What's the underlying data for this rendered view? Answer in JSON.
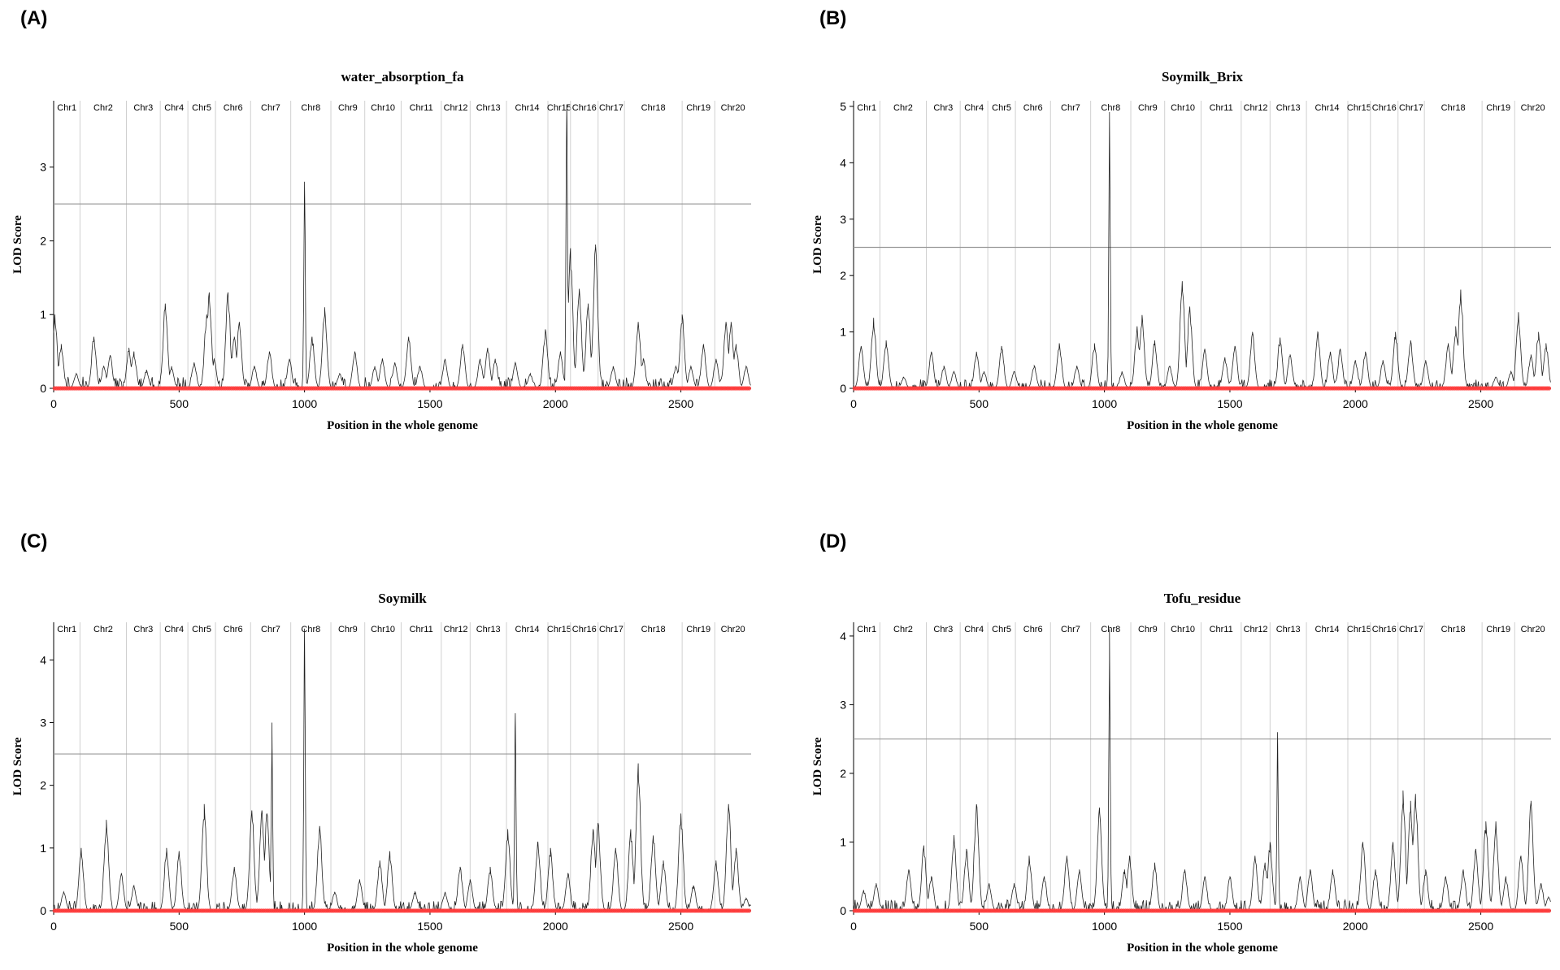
{
  "chart_data": [
    {
      "panel": "(A)",
      "type": "line",
      "title": "water_absorption_fa",
      "xlabel": "Position in the whole genome",
      "ylabel": "LOD Score",
      "xlim": [
        0,
        2780
      ],
      "ylim": [
        0,
        3.9
      ],
      "xticks": [
        0,
        500,
        1000,
        1500,
        2000,
        2500
      ],
      "yticks": [
        0,
        1,
        2,
        3
      ],
      "threshold": 2.5,
      "grid": "vertical chromosome boundaries",
      "chromosomes": [
        {
          "name": "Chr1",
          "start": 0,
          "end": 105
        },
        {
          "name": "Chr2",
          "start": 105,
          "end": 290
        },
        {
          "name": "Chr3",
          "start": 290,
          "end": 425
        },
        {
          "name": "Chr4",
          "start": 425,
          "end": 535
        },
        {
          "name": "Chr5",
          "start": 535,
          "end": 645
        },
        {
          "name": "Chr6",
          "start": 645,
          "end": 785
        },
        {
          "name": "Chr7",
          "start": 785,
          "end": 945
        },
        {
          "name": "Chr8",
          "start": 945,
          "end": 1105
        },
        {
          "name": "Chr9",
          "start": 1105,
          "end": 1240
        },
        {
          "name": "Chr10",
          "start": 1240,
          "end": 1385
        },
        {
          "name": "Chr11",
          "start": 1385,
          "end": 1545
        },
        {
          "name": "Chr12",
          "start": 1545,
          "end": 1660
        },
        {
          "name": "Chr13",
          "start": 1660,
          "end": 1805
        },
        {
          "name": "Chr14",
          "start": 1805,
          "end": 1970
        },
        {
          "name": "Chr15",
          "start": 1970,
          "end": 2060
        },
        {
          "name": "Chr16",
          "start": 2060,
          "end": 2170
        },
        {
          "name": "Chr17",
          "start": 2170,
          "end": 2275
        },
        {
          "name": "Chr18",
          "start": 2275,
          "end": 2505
        },
        {
          "name": "Chr19",
          "start": 2505,
          "end": 2635
        },
        {
          "name": "Chr20",
          "start": 2635,
          "end": 2780
        }
      ],
      "peaks": [
        [
          5,
          1.0
        ],
        [
          30,
          0.6
        ],
        [
          90,
          0.2
        ],
        [
          160,
          0.7
        ],
        [
          200,
          0.3
        ],
        [
          225,
          0.45
        ],
        [
          300,
          0.55
        ],
        [
          320,
          0.5
        ],
        [
          370,
          0.25
        ],
        [
          445,
          1.15
        ],
        [
          470,
          0.3
        ],
        [
          560,
          0.35
        ],
        [
          610,
          1.0
        ],
        [
          620,
          1.3
        ],
        [
          640,
          0.4
        ],
        [
          695,
          1.3
        ],
        [
          720,
          0.7
        ],
        [
          740,
          0.9
        ],
        [
          800,
          0.3
        ],
        [
          860,
          0.5
        ],
        [
          940,
          0.4
        ],
        [
          1000,
          2.8
        ],
        [
          1030,
          0.7
        ],
        [
          1080,
          1.1
        ],
        [
          1140,
          0.2
        ],
        [
          1200,
          0.5
        ],
        [
          1280,
          0.3
        ],
        [
          1310,
          0.4
        ],
        [
          1360,
          0.35
        ],
        [
          1415,
          0.7
        ],
        [
          1460,
          0.3
        ],
        [
          1560,
          0.4
        ],
        [
          1630,
          0.6
        ],
        [
          1700,
          0.4
        ],
        [
          1730,
          0.55
        ],
        [
          1760,
          0.4
        ],
        [
          1840,
          0.35
        ],
        [
          1900,
          0.2
        ],
        [
          1960,
          0.8
        ],
        [
          2020,
          0.5
        ],
        [
          2045,
          3.85
        ],
        [
          2060,
          1.9
        ],
        [
          2095,
          1.35
        ],
        [
          2130,
          1.15
        ],
        [
          2160,
          1.95
        ],
        [
          2230,
          0.3
        ],
        [
          2330,
          0.9
        ],
        [
          2350,
          0.4
        ],
        [
          2480,
          0.3
        ],
        [
          2505,
          1.0
        ],
        [
          2540,
          0.3
        ],
        [
          2590,
          0.6
        ],
        [
          2640,
          0.4
        ],
        [
          2680,
          0.9
        ],
        [
          2700,
          0.9
        ],
        [
          2720,
          0.6
        ],
        [
          2760,
          0.3
        ]
      ],
      "color_line": "#222222",
      "color_markers": "#ff3b3b",
      "color_threshold": "#999999"
    },
    {
      "panel": "(B)",
      "type": "line",
      "title": "Soymilk_Brix",
      "xlabel": "Position in the whole genome",
      "ylabel": "LOD Score",
      "xlim": [
        0,
        2780
      ],
      "ylim": [
        0,
        5.1
      ],
      "xticks": [
        0,
        500,
        1000,
        1500,
        2000,
        2500
      ],
      "yticks": [
        0,
        1,
        2,
        3,
        4,
        5
      ],
      "threshold": 2.5,
      "grid": "vertical chromosome boundaries",
      "chromosomes": [
        {
          "name": "Chr1",
          "start": 0,
          "end": 105
        },
        {
          "name": "Chr2",
          "start": 105,
          "end": 290
        },
        {
          "name": "Chr3",
          "start": 290,
          "end": 425
        },
        {
          "name": "Chr4",
          "start": 425,
          "end": 535
        },
        {
          "name": "Chr5",
          "start": 535,
          "end": 645
        },
        {
          "name": "Chr6",
          "start": 645,
          "end": 785
        },
        {
          "name": "Chr7",
          "start": 785,
          "end": 945
        },
        {
          "name": "Chr8",
          "start": 945,
          "end": 1105
        },
        {
          "name": "Chr9",
          "start": 1105,
          "end": 1240
        },
        {
          "name": "Chr10",
          "start": 1240,
          "end": 1385
        },
        {
          "name": "Chr11",
          "start": 1385,
          "end": 1545
        },
        {
          "name": "Chr12",
          "start": 1545,
          "end": 1660
        },
        {
          "name": "Chr13",
          "start": 1660,
          "end": 1805
        },
        {
          "name": "Chr14",
          "start": 1805,
          "end": 1970
        },
        {
          "name": "Chr15",
          "start": 1970,
          "end": 2060
        },
        {
          "name": "Chr16",
          "start": 2060,
          "end": 2170
        },
        {
          "name": "Chr17",
          "start": 2170,
          "end": 2275
        },
        {
          "name": "Chr18",
          "start": 2275,
          "end": 2505
        },
        {
          "name": "Chr19",
          "start": 2505,
          "end": 2635
        },
        {
          "name": "Chr20",
          "start": 2635,
          "end": 2780
        }
      ],
      "peaks": [
        [
          30,
          0.75
        ],
        [
          80,
          1.25
        ],
        [
          130,
          0.85
        ],
        [
          200,
          0.2
        ],
        [
          310,
          0.65
        ],
        [
          360,
          0.4
        ],
        [
          400,
          0.3
        ],
        [
          490,
          0.65
        ],
        [
          520,
          0.3
        ],
        [
          590,
          0.75
        ],
        [
          640,
          0.3
        ],
        [
          720,
          0.4
        ],
        [
          820,
          0.8
        ],
        [
          890,
          0.4
        ],
        [
          960,
          0.8
        ],
        [
          1020,
          4.9
        ],
        [
          1070,
          0.3
        ],
        [
          1130,
          1.1
        ],
        [
          1150,
          1.3
        ],
        [
          1200,
          0.85
        ],
        [
          1260,
          0.4
        ],
        [
          1310,
          1.9
        ],
        [
          1340,
          1.45
        ],
        [
          1400,
          0.7
        ],
        [
          1480,
          0.55
        ],
        [
          1520,
          0.75
        ],
        [
          1590,
          1.0
        ],
        [
          1700,
          0.9
        ],
        [
          1740,
          0.6
        ],
        [
          1850,
          1.0
        ],
        [
          1900,
          0.65
        ],
        [
          1940,
          0.7
        ],
        [
          2000,
          0.5
        ],
        [
          2040,
          0.65
        ],
        [
          2110,
          0.5
        ],
        [
          2160,
          1.0
        ],
        [
          2220,
          0.85
        ],
        [
          2280,
          0.5
        ],
        [
          2370,
          0.8
        ],
        [
          2400,
          1.1
        ],
        [
          2420,
          1.75
        ],
        [
          2560,
          0.2
        ],
        [
          2620,
          0.3
        ],
        [
          2650,
          1.35
        ],
        [
          2700,
          0.6
        ],
        [
          2730,
          1.0
        ],
        [
          2760,
          0.8
        ]
      ],
      "color_line": "#222222",
      "color_markers": "#ff3b3b",
      "color_threshold": "#999999"
    },
    {
      "panel": "(C)",
      "type": "line",
      "title": "Soymilk",
      "xlabel": "Position in the whole genome",
      "ylabel": "LOD Score",
      "xlim": [
        0,
        2780
      ],
      "ylim": [
        0,
        4.6
      ],
      "xticks": [
        0,
        500,
        1000,
        1500,
        2000,
        2500
      ],
      "yticks": [
        0,
        1,
        2,
        3,
        4
      ],
      "threshold": 2.5,
      "grid": "vertical chromosome boundaries",
      "chromosomes": [
        {
          "name": "Chr1",
          "start": 0,
          "end": 105
        },
        {
          "name": "Chr2",
          "start": 105,
          "end": 290
        },
        {
          "name": "Chr3",
          "start": 290,
          "end": 425
        },
        {
          "name": "Chr4",
          "start": 425,
          "end": 535
        },
        {
          "name": "Chr5",
          "start": 535,
          "end": 645
        },
        {
          "name": "Chr6",
          "start": 645,
          "end": 785
        },
        {
          "name": "Chr7",
          "start": 785,
          "end": 945
        },
        {
          "name": "Chr8",
          "start": 945,
          "end": 1105
        },
        {
          "name": "Chr9",
          "start": 1105,
          "end": 1240
        },
        {
          "name": "Chr10",
          "start": 1240,
          "end": 1385
        },
        {
          "name": "Chr11",
          "start": 1385,
          "end": 1545
        },
        {
          "name": "Chr12",
          "start": 1545,
          "end": 1660
        },
        {
          "name": "Chr13",
          "start": 1660,
          "end": 1805
        },
        {
          "name": "Chr14",
          "start": 1805,
          "end": 1970
        },
        {
          "name": "Chr15",
          "start": 1970,
          "end": 2060
        },
        {
          "name": "Chr16",
          "start": 2060,
          "end": 2170
        },
        {
          "name": "Chr17",
          "start": 2170,
          "end": 2275
        },
        {
          "name": "Chr18",
          "start": 2275,
          "end": 2505
        },
        {
          "name": "Chr19",
          "start": 2505,
          "end": 2635
        },
        {
          "name": "Chr20",
          "start": 2635,
          "end": 2780
        }
      ],
      "peaks": [
        [
          40,
          0.3
        ],
        [
          110,
          1.0
        ],
        [
          210,
          1.45
        ],
        [
          270,
          0.6
        ],
        [
          320,
          0.4
        ],
        [
          450,
          1.0
        ],
        [
          500,
          0.95
        ],
        [
          600,
          1.7
        ],
        [
          720,
          0.7
        ],
        [
          790,
          1.6
        ],
        [
          830,
          1.6
        ],
        [
          850,
          1.55
        ],
        [
          870,
          3.0
        ],
        [
          1000,
          4.5
        ],
        [
          1060,
          1.35
        ],
        [
          1120,
          0.3
        ],
        [
          1220,
          0.5
        ],
        [
          1300,
          0.8
        ],
        [
          1340,
          0.95
        ],
        [
          1440,
          0.3
        ],
        [
          1560,
          0.3
        ],
        [
          1620,
          0.7
        ],
        [
          1660,
          0.5
        ],
        [
          1740,
          0.7
        ],
        [
          1810,
          1.3
        ],
        [
          1840,
          3.15
        ],
        [
          1930,
          1.1
        ],
        [
          1980,
          1.0
        ],
        [
          2050,
          0.6
        ],
        [
          2150,
          1.3
        ],
        [
          2170,
          1.4
        ],
        [
          2240,
          1.0
        ],
        [
          2300,
          1.3
        ],
        [
          2330,
          2.35
        ],
        [
          2390,
          1.2
        ],
        [
          2430,
          0.8
        ],
        [
          2500,
          1.55
        ],
        [
          2550,
          0.4
        ],
        [
          2640,
          0.8
        ],
        [
          2690,
          1.7
        ],
        [
          2720,
          1.0
        ],
        [
          2760,
          0.2
        ]
      ],
      "color_line": "#222222",
      "color_markers": "#ff3b3b",
      "color_threshold": "#999999"
    },
    {
      "panel": "(D)",
      "type": "line",
      "title": "Tofu_residue",
      "xlabel": "Position in the whole genome",
      "ylabel": "LOD Score",
      "xlim": [
        0,
        2780
      ],
      "ylim": [
        0,
        4.2
      ],
      "xticks": [
        0,
        500,
        1000,
        1500,
        2000,
        2500
      ],
      "yticks": [
        0,
        1,
        2,
        3,
        4
      ],
      "threshold": 2.5,
      "grid": "vertical chromosome boundaries",
      "chromosomes": [
        {
          "name": "Chr1",
          "start": 0,
          "end": 105
        },
        {
          "name": "Chr2",
          "start": 105,
          "end": 290
        },
        {
          "name": "Chr3",
          "start": 290,
          "end": 425
        },
        {
          "name": "Chr4",
          "start": 425,
          "end": 535
        },
        {
          "name": "Chr5",
          "start": 535,
          "end": 645
        },
        {
          "name": "Chr6",
          "start": 645,
          "end": 785
        },
        {
          "name": "Chr7",
          "start": 785,
          "end": 945
        },
        {
          "name": "Chr8",
          "start": 945,
          "end": 1105
        },
        {
          "name": "Chr9",
          "start": 1105,
          "end": 1240
        },
        {
          "name": "Chr10",
          "start": 1240,
          "end": 1385
        },
        {
          "name": "Chr11",
          "start": 1385,
          "end": 1545
        },
        {
          "name": "Chr12",
          "start": 1545,
          "end": 1660
        },
        {
          "name": "Chr13",
          "start": 1660,
          "end": 1805
        },
        {
          "name": "Chr14",
          "start": 1805,
          "end": 1970
        },
        {
          "name": "Chr15",
          "start": 1970,
          "end": 2060
        },
        {
          "name": "Chr16",
          "start": 2060,
          "end": 2170
        },
        {
          "name": "Chr17",
          "start": 2170,
          "end": 2275
        },
        {
          "name": "Chr18",
          "start": 2275,
          "end": 2505
        },
        {
          "name": "Chr19",
          "start": 2505,
          "end": 2635
        },
        {
          "name": "Chr20",
          "start": 2635,
          "end": 2780
        }
      ],
      "peaks": [
        [
          40,
          0.3
        ],
        [
          90,
          0.4
        ],
        [
          220,
          0.6
        ],
        [
          280,
          0.95
        ],
        [
          310,
          0.5
        ],
        [
          400,
          1.1
        ],
        [
          450,
          0.9
        ],
        [
          490,
          1.55
        ],
        [
          540,
          0.4
        ],
        [
          640,
          0.4
        ],
        [
          700,
          0.8
        ],
        [
          760,
          0.5
        ],
        [
          850,
          0.8
        ],
        [
          900,
          0.6
        ],
        [
          980,
          1.5
        ],
        [
          1020,
          4.1
        ],
        [
          1080,
          0.6
        ],
        [
          1100,
          0.8
        ],
        [
          1200,
          0.7
        ],
        [
          1320,
          0.6
        ],
        [
          1400,
          0.5
        ],
        [
          1500,
          0.5
        ],
        [
          1600,
          0.8
        ],
        [
          1640,
          0.7
        ],
        [
          1660,
          1.0
        ],
        [
          1690,
          2.6
        ],
        [
          1780,
          0.5
        ],
        [
          1820,
          0.6
        ],
        [
          1910,
          0.6
        ],
        [
          2030,
          1.0
        ],
        [
          2080,
          0.6
        ],
        [
          2150,
          1.0
        ],
        [
          2190,
          1.75
        ],
        [
          2220,
          1.6
        ],
        [
          2240,
          1.7
        ],
        [
          2280,
          0.6
        ],
        [
          2360,
          0.5
        ],
        [
          2430,
          0.6
        ],
        [
          2480,
          0.9
        ],
        [
          2520,
          1.3
        ],
        [
          2560,
          1.3
        ],
        [
          2600,
          0.5
        ],
        [
          2660,
          0.8
        ],
        [
          2700,
          1.6
        ],
        [
          2740,
          0.4
        ],
        [
          2770,
          0.2
        ]
      ],
      "color_line": "#222222",
      "color_markers": "#ff3b3b",
      "color_threshold": "#999999"
    }
  ]
}
